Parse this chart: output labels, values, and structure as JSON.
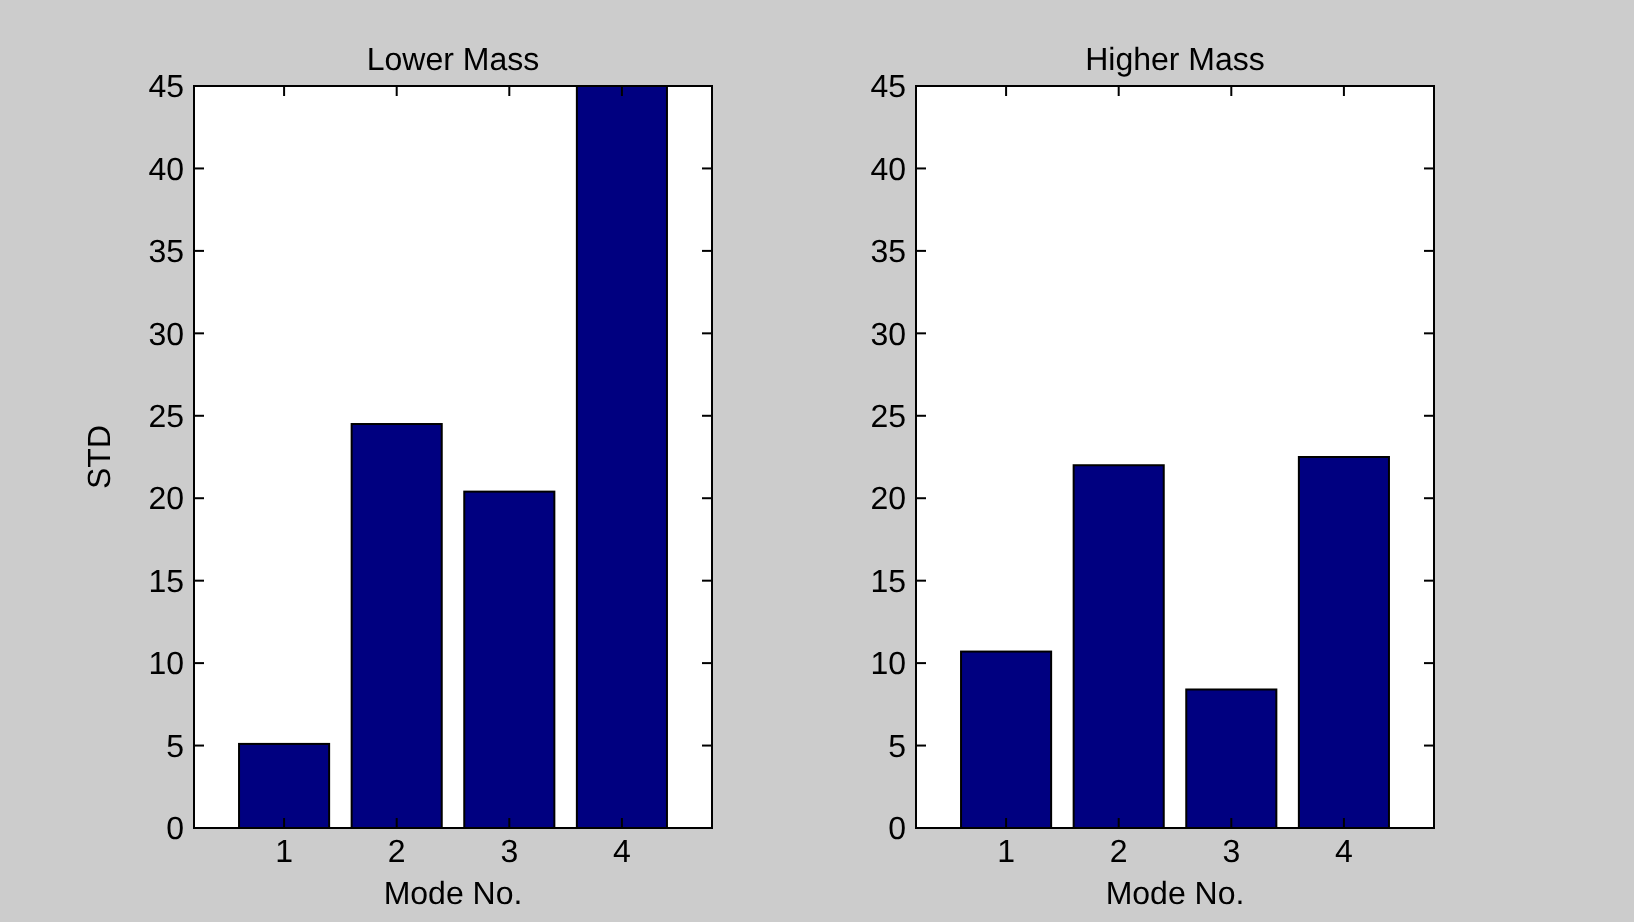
{
  "chart_data": [
    {
      "type": "bar",
      "title": "Lower Mass",
      "xlabel": "Mode No.",
      "ylabel": "STD",
      "categories": [
        "1",
        "2",
        "3",
        "4"
      ],
      "values": [
        5.1,
        24.5,
        20.4,
        45
      ],
      "color": "#000080",
      "ylim": [
        0,
        45
      ],
      "yticks": [
        0,
        5,
        10,
        15,
        20,
        25,
        30,
        35,
        40,
        45
      ],
      "grid": false
    },
    {
      "type": "bar",
      "title": "Higher Mass",
      "xlabel": "Mode No.",
      "categories": [
        "1",
        "2",
        "3",
        "4"
      ],
      "values": [
        10.7,
        22,
        8.4,
        22.5
      ],
      "color": "#000080",
      "ylim": [
        0,
        45
      ],
      "yticks": [
        0,
        5,
        10,
        15,
        20,
        25,
        30,
        35,
        40,
        45
      ],
      "grid": false
    }
  ]
}
